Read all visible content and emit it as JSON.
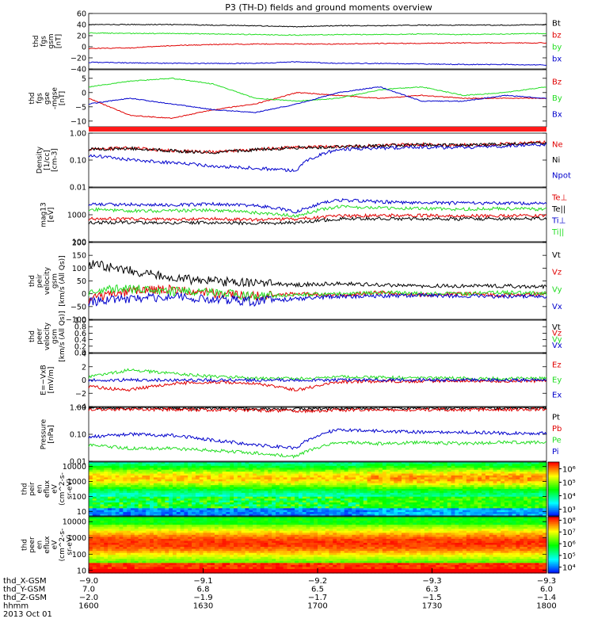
{
  "title": "P3 (TH-D) fields and ground moments overview",
  "colors": {
    "black": "#000000",
    "red": "#e00000",
    "green": "#22dd22",
    "blue": "#0000cc"
  },
  "chart_data": [
    {
      "type": "line",
      "panel": "fgs_gsm",
      "ylabel": [
        "thd",
        "fgs",
        "gsm",
        "[nT]"
      ],
      "ylim": [
        -40,
        60
      ],
      "yticks": [
        "60",
        "40",
        "20",
        "0",
        "−20",
        "−40"
      ],
      "ytick_values": [
        60,
        40,
        20,
        0,
        -20,
        -40
      ],
      "legend": [
        "Bt",
        "bz",
        "by",
        "bx"
      ],
      "series": [
        {
          "name": "Bt",
          "color": "black",
          "values": [
            40,
            40,
            40,
            39,
            38,
            36,
            38,
            38,
            39,
            39,
            39,
            40
          ]
        },
        {
          "name": "bz",
          "color": "red",
          "values": [
            -3,
            -2,
            2,
            4,
            5,
            5,
            5,
            6,
            6,
            7,
            7,
            7
          ]
        },
        {
          "name": "by",
          "color": "green",
          "values": [
            25,
            24,
            24,
            23,
            22,
            21,
            22,
            22,
            23,
            22,
            23,
            24
          ]
        },
        {
          "name": "bx",
          "color": "blue",
          "values": [
            -28,
            -29,
            -30,
            -30,
            -30,
            -27,
            -30,
            -30,
            -31,
            -32,
            -32,
            -33
          ]
        }
      ]
    },
    {
      "type": "line",
      "panel": "fgs_gse_mgse",
      "ylabel": [
        "thd",
        "fgs",
        "gse",
        "-mgse",
        "[nT]"
      ],
      "ylim": [
        -12,
        8
      ],
      "yticks": [
        "5",
        "0",
        "−5",
        "−10"
      ],
      "ytick_values": [
        5,
        0,
        -5,
        -10
      ],
      "legend": [
        "Bz",
        "By",
        "Bx"
      ],
      "series": [
        {
          "name": "Bz",
          "color": "red",
          "values": [
            -2,
            -8,
            -9,
            -6,
            -4,
            0,
            -1,
            -2,
            -1,
            -2,
            -2,
            -2
          ]
        },
        {
          "name": "By",
          "color": "green",
          "values": [
            2,
            4,
            5,
            3,
            -2,
            -3,
            -2,
            1,
            2,
            -1,
            0,
            2
          ]
        },
        {
          "name": "Bx",
          "color": "blue",
          "values": [
            -4,
            -2,
            -4,
            -6,
            -7,
            -4,
            0,
            2,
            -3,
            -3,
            -1,
            -2
          ]
        }
      ]
    },
    {
      "type": "line",
      "panel": "density",
      "ylabel": [
        "Density",
        "[1/cc]",
        "[cm-3]"
      ],
      "ylim": [
        0.01,
        1.0
      ],
      "log": true,
      "yticks": [
        "1.00",
        "0.10",
        "0.01"
      ],
      "ytick_values": [
        1,
        0.1,
        0.01
      ],
      "legend": [
        "Ne",
        "Ni",
        "Npot"
      ],
      "series": [
        {
          "name": "Ne",
          "color": "red",
          "values": [
            0.25,
            0.28,
            0.22,
            0.2,
            0.25,
            0.3,
            0.32,
            0.35,
            0.38,
            0.36,
            0.4,
            0.45
          ]
        },
        {
          "name": "Ni",
          "color": "black",
          "values": [
            0.25,
            0.27,
            0.22,
            0.19,
            0.24,
            0.29,
            0.31,
            0.34,
            0.37,
            0.35,
            0.39,
            0.44
          ]
        },
        {
          "name": "Npot",
          "color": "blue",
          "values": [
            0.15,
            0.1,
            0.08,
            0.06,
            0.05,
            0.04,
            0.25,
            0.28,
            0.3,
            0.29,
            0.33,
            0.38
          ]
        }
      ]
    },
    {
      "type": "line",
      "panel": "temperature",
      "ylabel": [
        "mag13",
        "[eV]"
      ],
      "ylim": [
        100,
        10000
      ],
      "log": true,
      "yticks": [
        "1000",
        "100"
      ],
      "ytick_values": [
        1000,
        100
      ],
      "legend": [
        "Te⊥",
        "Te||",
        "Ti⊥",
        "Ti||"
      ],
      "series": [
        {
          "name": "Te⊥",
          "color": "red",
          "values": [
            700,
            700,
            680,
            700,
            650,
            700,
            900,
            950,
            950,
            900,
            900,
            950
          ]
        },
        {
          "name": "Te||",
          "color": "black",
          "values": [
            520,
            520,
            500,
            520,
            480,
            510,
            700,
            720,
            700,
            700,
            720,
            720
          ]
        },
        {
          "name": "Ti⊥",
          "color": "blue",
          "values": [
            2500,
            2400,
            2300,
            2500,
            2200,
            1300,
            3500,
            3000,
            2800,
            2700,
            2700,
            2600
          ]
        },
        {
          "name": "Ti||",
          "color": "green",
          "values": [
            1600,
            1400,
            1400,
            1500,
            1200,
            900,
            2000,
            1800,
            1700,
            1600,
            1700,
            1600
          ]
        }
      ]
    },
    {
      "type": "line",
      "panel": "peir_velocity",
      "ylabel": [
        "thd",
        "peir",
        "velocity",
        "gsm",
        "[km/s (All Qs)]"
      ],
      "ylim": [
        -100,
        200
      ],
      "yticks": [
        "200",
        "150",
        "100",
        "50",
        "0",
        "−50",
        "−100"
      ],
      "ytick_values": [
        200,
        150,
        100,
        50,
        0,
        -50,
        -100
      ],
      "legend": [
        "Vt",
        "Vz",
        "Vy",
        "Vx"
      ],
      "series": [
        {
          "name": "Vt",
          "color": "black",
          "values": [
            120,
            90,
            60,
            50,
            40,
            35,
            40,
            35,
            30,
            30,
            30,
            28
          ]
        },
        {
          "name": "Vz",
          "color": "red",
          "values": [
            -20,
            10,
            20,
            0,
            -10,
            0,
            -5,
            5,
            -5,
            0,
            -5,
            0
          ]
        },
        {
          "name": "Vy",
          "color": "green",
          "values": [
            10,
            20,
            10,
            5,
            -10,
            -5,
            0,
            5,
            0,
            0,
            5,
            0
          ]
        },
        {
          "name": "Vx",
          "color": "blue",
          "values": [
            -30,
            -20,
            -10,
            -20,
            -30,
            -20,
            -10,
            -10,
            -5,
            -10,
            -10,
            -10
          ]
        }
      ]
    },
    {
      "type": "line",
      "panel": "peer_velocity",
      "ylabel": [
        "thd",
        "peer",
        "velocity",
        "gsm",
        "[km/s (All Qs)]"
      ],
      "ylim": [
        0,
        1
      ],
      "yticks": [
        "1.0",
        "0.8",
        "0.6",
        "0.4",
        "0.2",
        "0.0"
      ],
      "ytick_values": [
        1,
        0.8,
        0.6,
        0.4,
        0.2,
        0
      ],
      "legend": [
        "Vt",
        "Vz",
        "Vy",
        "Vx"
      ],
      "series": []
    },
    {
      "type": "line",
      "panel": "efield",
      "ylabel": [
        "E=−VxB",
        "[mV/m]"
      ],
      "ylim": [
        -4,
        4
      ],
      "yticks": [
        "4",
        "2",
        "0",
        "−2",
        "−4"
      ],
      "ytick_values": [
        4,
        2,
        0,
        -2,
        -4
      ],
      "legend": [
        "Ez",
        "Ey",
        "Ex"
      ],
      "series": [
        {
          "name": "Ez",
          "color": "red",
          "values": [
            -1,
            -1.5,
            -0.5,
            -0.3,
            -0.5,
            -1.5,
            -0.3,
            -0.2,
            -0.2,
            -0.1,
            -0.2,
            -0.1
          ]
        },
        {
          "name": "Ey",
          "color": "green",
          "values": [
            0.5,
            1.5,
            1,
            0.5,
            0.3,
            0.2,
            0.5,
            0.4,
            0.3,
            0.3,
            0.2,
            0.3
          ]
        },
        {
          "name": "Ex",
          "color": "blue",
          "values": [
            0,
            0,
            0,
            0,
            0,
            0,
            0,
            0,
            0,
            0,
            0,
            0
          ]
        }
      ]
    },
    {
      "type": "line",
      "panel": "pressure",
      "ylabel": [
        "Pressure",
        "[nPa]"
      ],
      "ylim": [
        0.01,
        1.0
      ],
      "log": true,
      "yticks": [
        "1.00",
        "0.10",
        "0.01"
      ],
      "ytick_values": [
        1,
        0.1,
        0.01
      ],
      "legend": [
        "Pt",
        "Pb",
        "Pe",
        "Pi"
      ],
      "series": [
        {
          "name": "Pt",
          "color": "black",
          "values": [
            0.95,
            0.95,
            0.93,
            0.9,
            0.88,
            0.85,
            0.9,
            0.92,
            0.93,
            0.94,
            0.95,
            0.95
          ]
        },
        {
          "name": "Pb",
          "color": "red",
          "values": [
            0.85,
            0.85,
            0.83,
            0.8,
            0.78,
            0.72,
            0.78,
            0.8,
            0.82,
            0.82,
            0.84,
            0.85
          ]
        },
        {
          "name": "Pe",
          "color": "green",
          "values": [
            0.04,
            0.03,
            0.03,
            0.025,
            0.02,
            0.015,
            0.05,
            0.045,
            0.05,
            0.045,
            0.05,
            0.05
          ]
        },
        {
          "name": "Pi",
          "color": "blue",
          "values": [
            0.08,
            0.1,
            0.09,
            0.06,
            0.04,
            0.03,
            0.15,
            0.13,
            0.12,
            0.12,
            0.11,
            0.11
          ]
        }
      ]
    },
    {
      "type": "heatmap",
      "panel": "peir_eflux",
      "ylabel": [
        "thd",
        "peir",
        "en",
        "eflux",
        "eV",
        "(cm^2-s-",
        "sr-eV)"
      ],
      "ylim": [
        5,
        20000
      ],
      "log": true,
      "yticks": [
        "10000",
        "1000",
        "100",
        "10"
      ],
      "ytick_values": [
        10000,
        1000,
        100,
        10
      ],
      "colorbar": {
        "ticks": [
          "10⁶",
          "10⁵",
          "10⁴",
          "10³"
        ],
        "tick_values": [
          6,
          5,
          4,
          3
        ],
        "range": [
          2.5,
          6.5
        ]
      }
    },
    {
      "type": "heatmap",
      "panel": "peer_eflux",
      "ylabel": [
        "thd",
        "peer",
        "en",
        "eflux",
        "eV",
        "(cm^2-s-",
        "sr-eV)"
      ],
      "ylim": [
        7,
        20000
      ],
      "log": true,
      "yticks": [
        "10000",
        "1000",
        "100",
        "10"
      ],
      "ytick_values": [
        10000,
        1000,
        100,
        10
      ],
      "colorbar": {
        "ticks": [
          "10⁸",
          "10⁷",
          "10⁶",
          "10⁵",
          "10⁴"
        ],
        "tick_values": [
          8,
          7,
          6,
          5,
          4
        ],
        "range": [
          3.5,
          8.3
        ]
      }
    }
  ],
  "x_axis": {
    "rows": [
      {
        "label": "thd_X-GSM",
        "values": [
          "−9.0",
          "−9.1",
          "−9.2",
          "−9.3",
          "−9.3"
        ]
      },
      {
        "label": "thd_Y-GSM",
        "values": [
          "7.0",
          "6.8",
          "6.5",
          "6.3",
          "6.0"
        ]
      },
      {
        "label": "thd_Z-GSM",
        "values": [
          "−2.0",
          "−1.9",
          "−1.7",
          "−1.5",
          "−1.4"
        ]
      },
      {
        "label": "hhmm",
        "values": [
          "1600",
          "1630",
          "1700",
          "1730",
          "1800"
        ]
      }
    ],
    "date": "2013 Oct 01"
  }
}
